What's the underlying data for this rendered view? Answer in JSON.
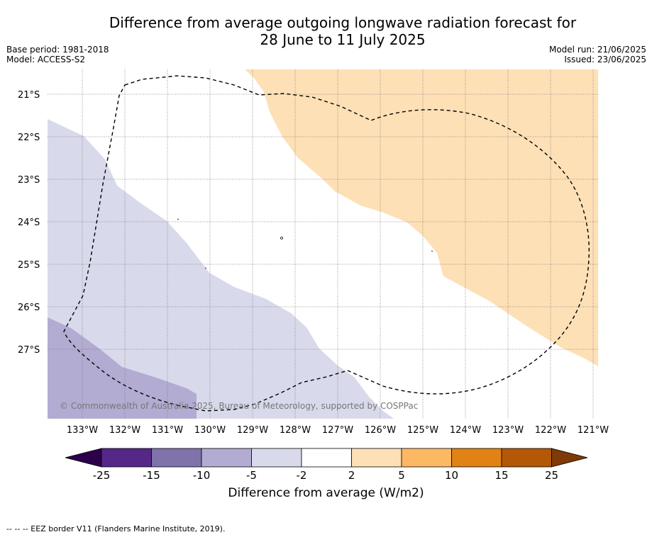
{
  "title": {
    "line1": "Difference from average outgoing longwave radiation forecast for",
    "line2": "28 June to 11 July 2025"
  },
  "meta": {
    "base_period": "Base period: 1981-2018",
    "model": "Model: ACCESS-S2",
    "model_run": "Model run: 21/06/2025",
    "issued": "Issued: 23/06/2025"
  },
  "map": {
    "lat_labels": [
      "21°S",
      "22°S",
      "23°S",
      "24°S",
      "25°S",
      "26°S",
      "27°S"
    ],
    "lon_labels": [
      "133°W",
      "132°W",
      "131°W",
      "130°W",
      "129°W",
      "128°W",
      "127°W",
      "126°W",
      "125°W",
      "124°W",
      "123°W",
      "122°W",
      "121°W"
    ],
    "copyright": "© Commonwealth of Australia 2025, Bureau of Meteorology, supported by COSPPac"
  },
  "colorbar": {
    "labels": [
      "-25",
      "-15",
      "-10",
      "-5",
      "-2",
      "2",
      "5",
      "10",
      "15",
      "25"
    ],
    "title": "Difference from average (W/m2)",
    "colors": {
      "below": "#2d004b",
      "bins": [
        "#542788",
        "#8073ac",
        "#b2abd2",
        "#d8daeb",
        "#ffffff",
        "#fee0b6",
        "#fdb863",
        "#e08214",
        "#b35806"
      ],
      "above": "#7f3b08"
    }
  },
  "footer": "--  --  -- EEZ border V11 (Flanders Marine Institute, 2019)."
}
